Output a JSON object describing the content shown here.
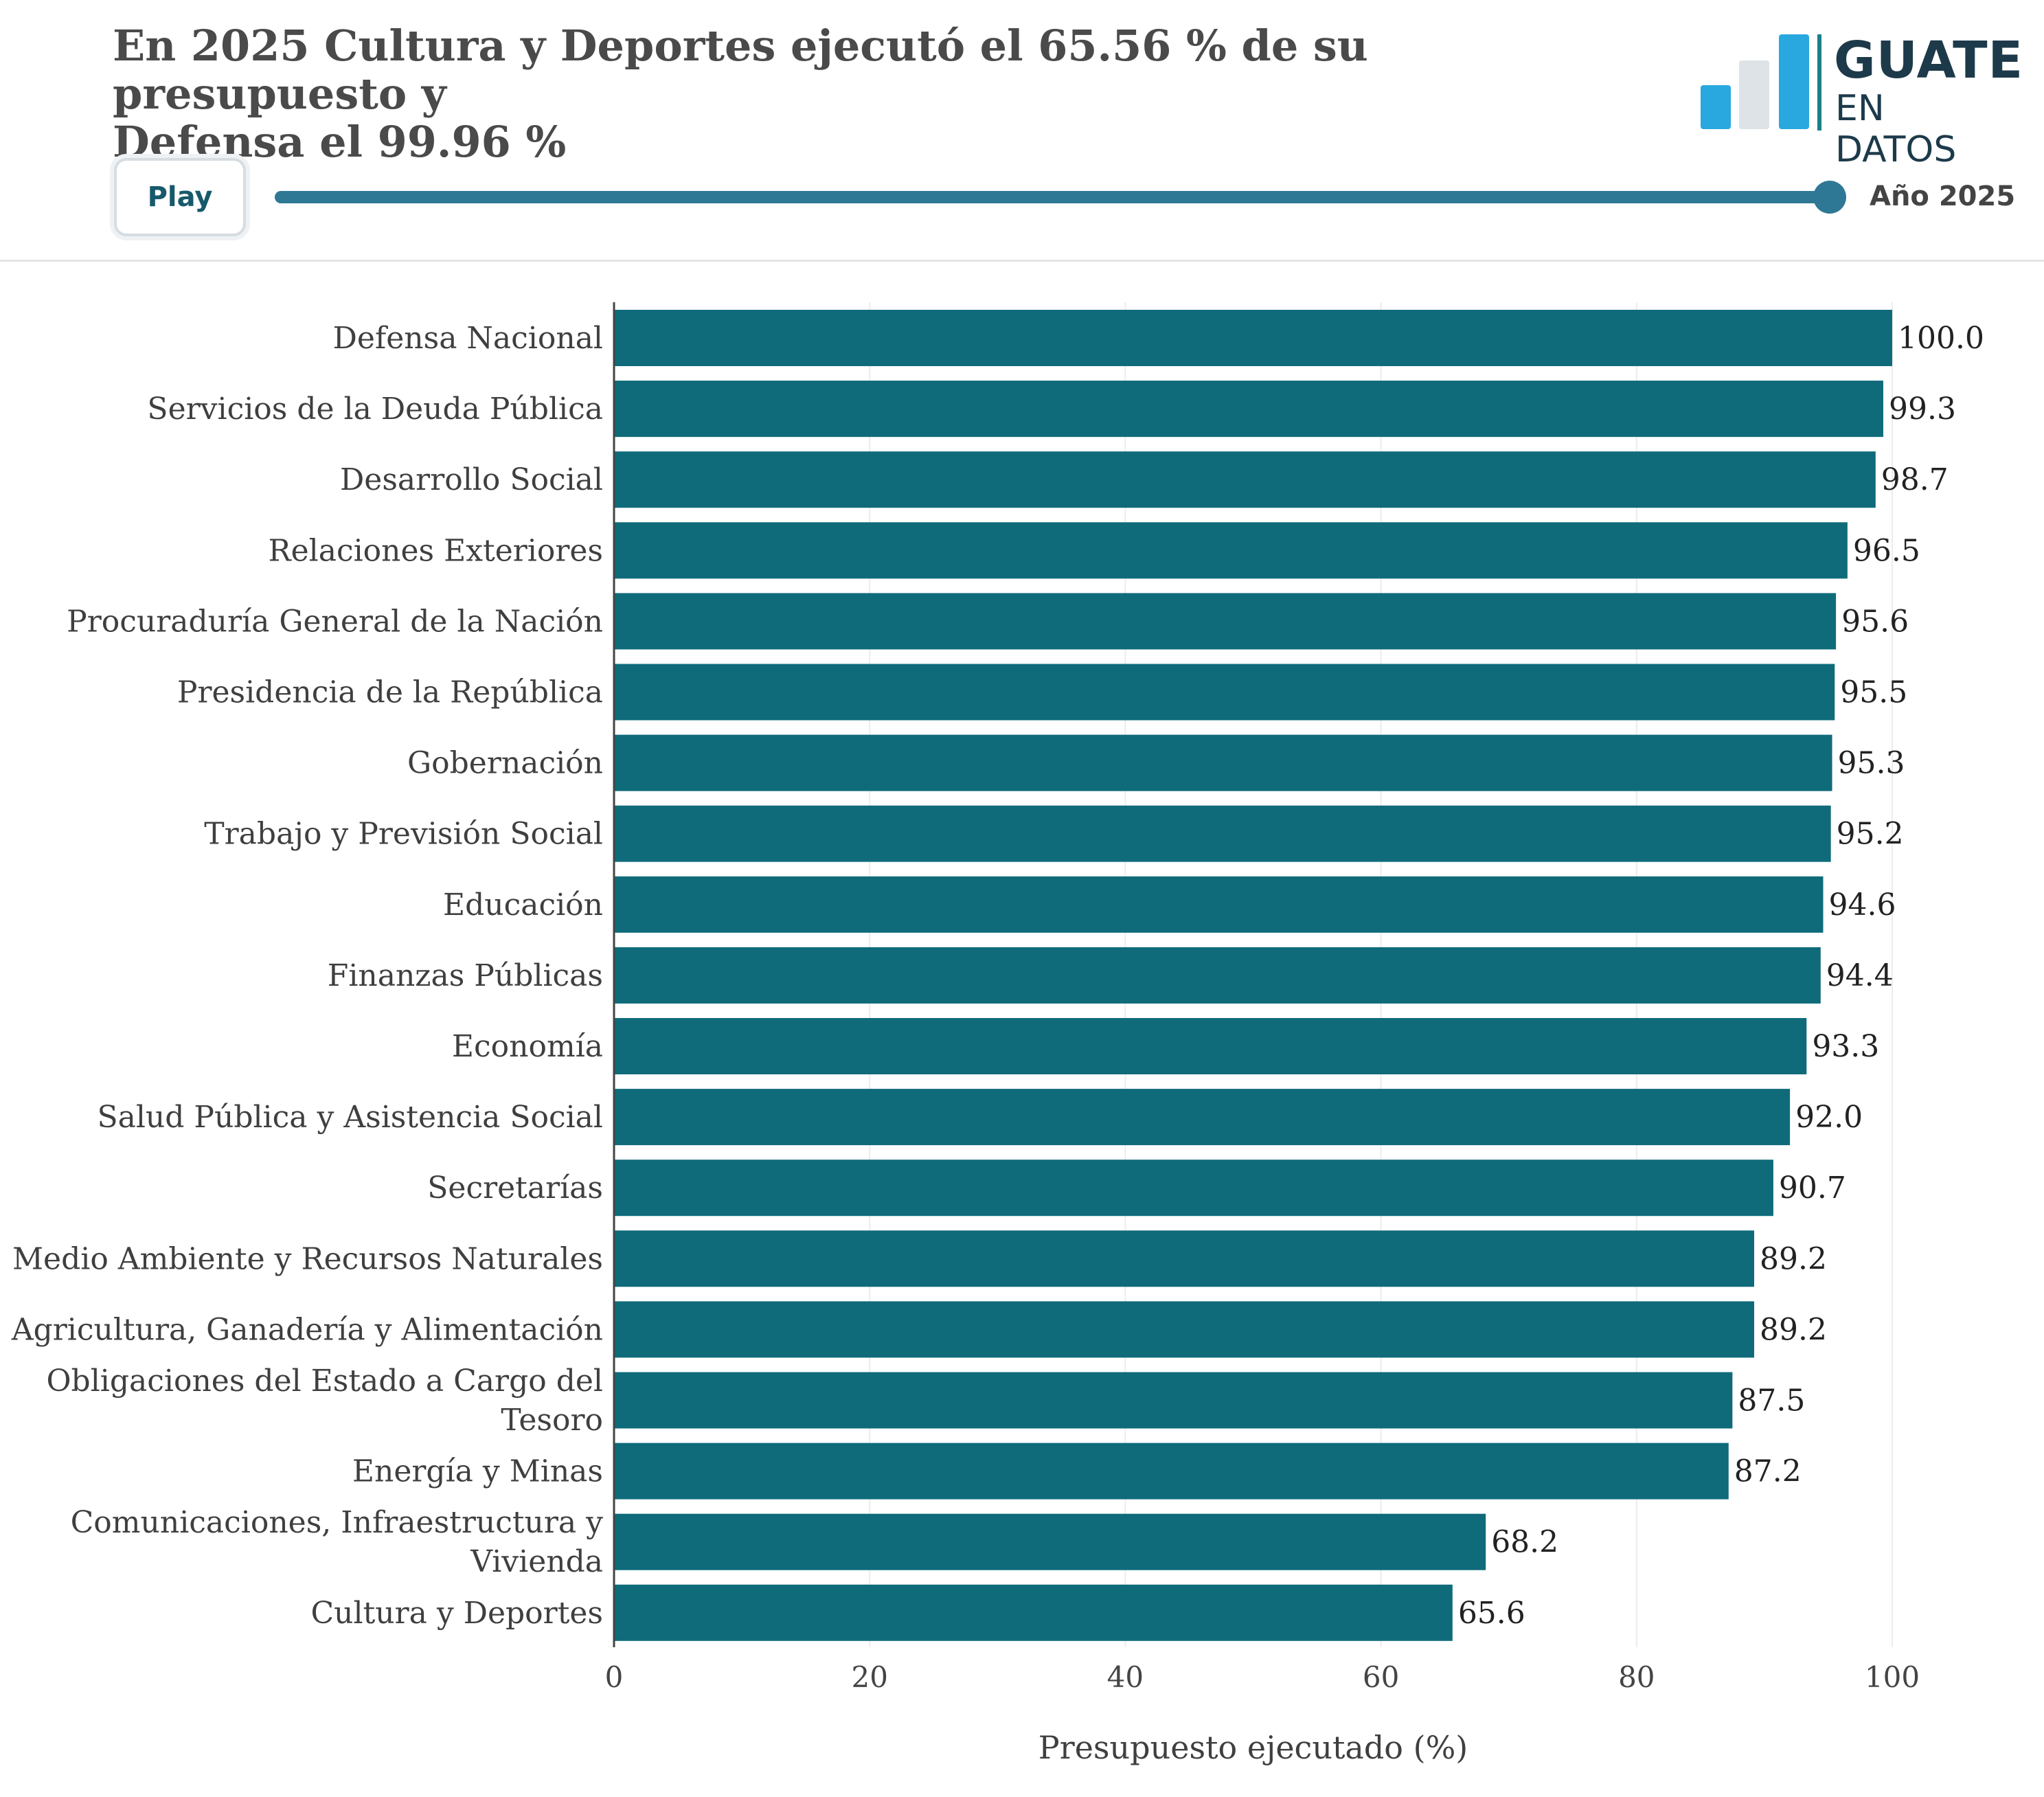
{
  "header": {
    "title_line1": "En 2025 Cultura y Deportes ejecutó el 65.56 % de su presupuesto y",
    "title_line2": "Defensa el 99.96 %"
  },
  "logo": {
    "line1": "GUATE",
    "line2": "EN DATOS",
    "colors": {
      "accent": "#29a8e0",
      "gray": "#dde3e6",
      "text": "#1d3a4a",
      "separator": "#1a7f8a"
    }
  },
  "controls": {
    "play_label": "Play",
    "year_label": "Año 2025",
    "slider_progress": 1.0
  },
  "colors": {
    "bar": "#0f6b7a",
    "slider": "#2e7895",
    "title": "#4a4a4a"
  },
  "chart_data": {
    "type": "bar",
    "orientation": "horizontal",
    "categories": [
      [
        "Defensa Nacional"
      ],
      [
        "Servicios de la Deuda Pública"
      ],
      [
        "Desarrollo Social"
      ],
      [
        "Relaciones Exteriores"
      ],
      [
        "Procuraduría General de la Nación"
      ],
      [
        "Presidencia de la República"
      ],
      [
        "Gobernación"
      ],
      [
        "Trabajo y Previsión Social"
      ],
      [
        "Educación"
      ],
      [
        "Finanzas Públicas"
      ],
      [
        "Economía"
      ],
      [
        "Salud Pública y Asistencia Social"
      ],
      [
        "Secretarías"
      ],
      [
        "Medio Ambiente y Recursos Naturales"
      ],
      [
        "Agricultura, Ganadería y Alimentación"
      ],
      [
        "Obligaciones del Estado a Cargo del",
        "Tesoro"
      ],
      [
        "Energía y Minas"
      ],
      [
        "Comunicaciones, Infraestructura y",
        "Vivienda"
      ],
      [
        "Cultura y Deportes"
      ]
    ],
    "values": [
      100.0,
      99.3,
      98.7,
      96.5,
      95.6,
      95.5,
      95.3,
      95.2,
      94.6,
      94.4,
      93.3,
      92.0,
      90.7,
      89.2,
      89.2,
      87.5,
      87.2,
      68.2,
      65.6
    ],
    "value_labels": [
      "100.0",
      "99.3",
      "98.7",
      "96.5",
      "95.6",
      "95.5",
      "95.3",
      "95.2",
      "94.6",
      "94.4",
      "93.3",
      "92.0",
      "90.7",
      "89.2",
      "89.2",
      "87.5",
      "87.2",
      "68.2",
      "65.6"
    ],
    "xlabel": "Presupuesto ejecutado (%)",
    "ylabel": "",
    "xlim": [
      0,
      100
    ],
    "xticks": [
      0,
      20,
      40,
      60,
      80,
      100
    ],
    "grid": "vertical"
  }
}
